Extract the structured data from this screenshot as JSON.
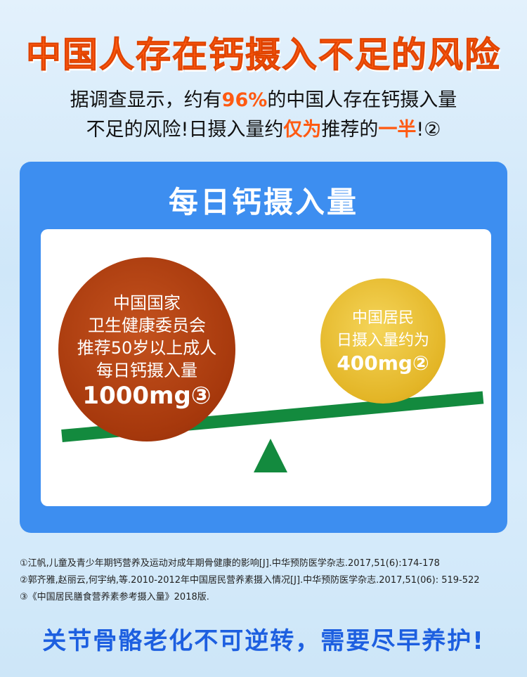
{
  "title": "中国人存在钙摄入不足的风险",
  "intro": {
    "l1a": "据调查显示，约有",
    "l1hl": "96%",
    "l1b": "的中国人存在钙摄入量",
    "l2a": "不足的风险!日摄入量约",
    "l2hl1": "仅为",
    "l2b": "推荐的",
    "l2hl2": "一半",
    "l2c": "!②"
  },
  "panel": {
    "title": "每日钙摄入量",
    "recommended": {
      "lines": [
        "中国国家",
        "卫生健康委员会",
        "推荐50岁以上成人",
        "每日钙摄入量"
      ],
      "value": "1000mg③"
    },
    "actual": {
      "lines": [
        "中国居民",
        "日摄入量约为"
      ],
      "value": "400mg②"
    }
  },
  "colors": {
    "accent": "#ff5a12",
    "panel": "#3d8ef0",
    "beam": "#138a3e",
    "slogan": "#1d5fe0"
  },
  "references": [
    "①江帆,儿童及青少年期钙营养及运动对成年期骨健康的影响[J].中华预防医学杂志.2017,51(6):174-178",
    "②郭齐雅,赵丽云,何宇纳,等.2010-2012年中国居民营养素摄入情况[J].中华预防医学杂志.2017,51(06): 519-522",
    "③《中国居民膳食营养素参考摄入量》2018版."
  ],
  "slogan": "关节骨骼老化不可逆转，需要尽早养护!"
}
